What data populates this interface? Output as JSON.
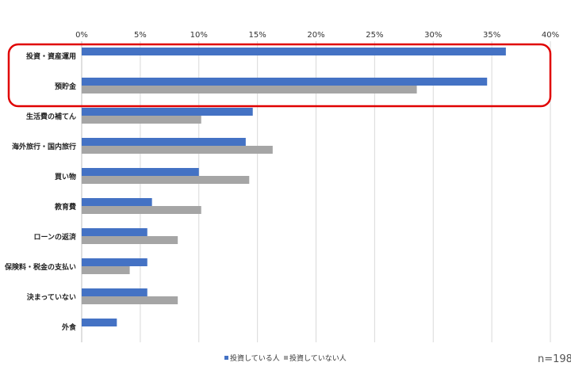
{
  "chart_data": {
    "type": "bar",
    "orientation": "horizontal",
    "title": "",
    "xlabel": "",
    "ylabel": "",
    "xlim": [
      0,
      40
    ],
    "x_ticks": [
      "0%",
      "5%",
      "10%",
      "15%",
      "20%",
      "25%",
      "30%",
      "35%",
      "40%"
    ],
    "grid": true,
    "legend_position": "bottom",
    "categories": [
      "投資・資産運用",
      "預貯金",
      "生活費の補てん",
      "海外旅行・国内旅行",
      "買い物",
      "教育費",
      "ローンの返済",
      "保険料・税金の支払い",
      "決まっていない",
      "外食"
    ],
    "series": [
      {
        "name": "投資している人",
        "color": "#4472c4",
        "values": [
          36.2,
          34.6,
          14.6,
          14.0,
          10.0,
          6.0,
          5.6,
          5.6,
          5.6,
          3.0
        ]
      },
      {
        "name": "投資していない人",
        "color": "#a5a5a5",
        "values": [
          null,
          28.6,
          10.2,
          16.3,
          14.3,
          10.2,
          8.2,
          4.1,
          8.2,
          null
        ]
      }
    ],
    "highlight": {
      "categories": [
        "投資・資産運用",
        "預貯金"
      ],
      "color": "#e00000"
    },
    "note": "n=198"
  }
}
